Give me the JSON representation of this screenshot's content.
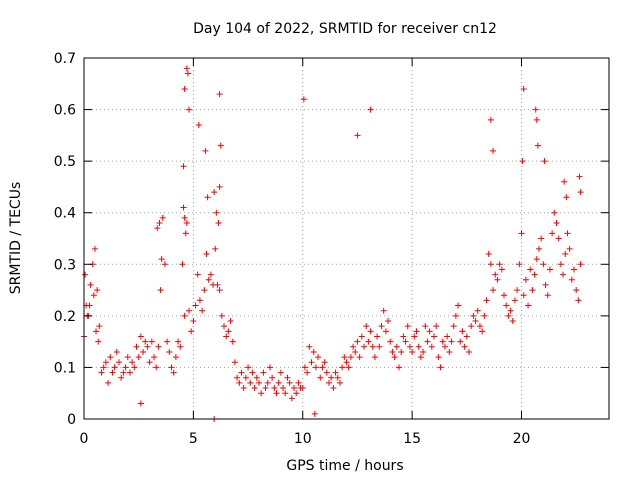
{
  "chart_data": {
    "type": "scatter",
    "title": "Day 104 of 2022, SRMTID for receiver cn12",
    "xlabel": "GPS time / hours",
    "ylabel": "SRMTID / TECUs",
    "xlim": [
      0,
      24
    ],
    "ylim": [
      0,
      0.7
    ],
    "xticks": [
      "0",
      "5",
      "10",
      "15",
      "20"
    ],
    "yticks": [
      "0",
      "0.1",
      "0.2",
      "0.3",
      "0.4",
      "0.5",
      "0.6",
      "0.7"
    ],
    "xtick_values": [
      0,
      5,
      10,
      15,
      20
    ],
    "ytick_values": [
      0,
      0.1,
      0.2,
      0.3,
      0.4,
      0.5,
      0.6,
      0.7
    ],
    "grid": true,
    "marker": "+",
    "color": "#ff0000",
    "series": [
      {
        "name": "SRMTID",
        "x": [
          0.0,
          0.1,
          0.2,
          0.3,
          0.4,
          0.5,
          0.6,
          0.7,
          0.8,
          0.9,
          1.0,
          1.1,
          1.2,
          1.3,
          1.4,
          1.5,
          1.6,
          1.7,
          1.8,
          1.9,
          2.0,
          2.1,
          2.2,
          2.3,
          2.4,
          2.5,
          2.6,
          2.7,
          2.8,
          2.9,
          3.0,
          3.1,
          3.2,
          3.3,
          3.4,
          3.5,
          3.6,
          3.7,
          3.8,
          3.9,
          4.0,
          4.1,
          4.2,
          4.3,
          4.4,
          4.5,
          4.6,
          4.7,
          4.8,
          4.9,
          5.0,
          5.1,
          5.2,
          5.3,
          5.4,
          5.5,
          5.6,
          5.7,
          5.8,
          5.9,
          6.0,
          6.1,
          6.2,
          6.3,
          6.4,
          6.5,
          6.6,
          6.7,
          6.8,
          6.9,
          7.0,
          7.1,
          7.2,
          7.3,
          7.4,
          7.5,
          7.6,
          7.7,
          7.8,
          7.9,
          8.0,
          8.1,
          8.2,
          8.3,
          8.4,
          8.5,
          8.6,
          8.7,
          8.8,
          8.9,
          9.0,
          9.1,
          9.2,
          9.3,
          9.4,
          9.5,
          9.6,
          9.7,
          9.8,
          9.9,
          10.0,
          10.1,
          10.2,
          10.3,
          10.4,
          10.5,
          10.6,
          10.7,
          10.8,
          10.9,
          11.0,
          11.1,
          11.2,
          11.3,
          11.4,
          11.5,
          11.6,
          11.7,
          11.8,
          11.9,
          12.0,
          12.1,
          12.2,
          12.3,
          12.4,
          12.5,
          12.6,
          12.7,
          12.8,
          12.9,
          13.0,
          13.1,
          13.2,
          13.3,
          13.4,
          13.5,
          13.6,
          13.7,
          13.8,
          13.9,
          14.0,
          14.1,
          14.2,
          14.3,
          14.4,
          14.5,
          14.6,
          14.7,
          14.8,
          14.9,
          15.0,
          15.1,
          15.2,
          15.3,
          15.4,
          15.5,
          15.6,
          15.7,
          15.8,
          15.9,
          16.0,
          16.1,
          16.2,
          16.3,
          16.4,
          16.5,
          16.6,
          16.7,
          16.8,
          16.9,
          17.0,
          17.1,
          17.2,
          17.3,
          17.4,
          17.5,
          17.6,
          17.7,
          17.8,
          17.9,
          18.0,
          18.1,
          18.2,
          18.3,
          18.4,
          18.5,
          18.6,
          18.7,
          18.8,
          18.9,
          19.0,
          19.1,
          19.2,
          19.3,
          19.4,
          19.5,
          19.6,
          19.7,
          19.8,
          19.9,
          20.0,
          20.1,
          20.2,
          20.3,
          20.4,
          20.5,
          20.6,
          20.7,
          20.8,
          20.9,
          21.0,
          21.1,
          21.2,
          21.3,
          21.4,
          21.5,
          21.6,
          21.7,
          21.8,
          21.9,
          22.0,
          22.1,
          22.2,
          22.3,
          22.4,
          22.5,
          22.6,
          22.7,
          0.05,
          0.15,
          0.25,
          0.45,
          0.55,
          0.65,
          3.35,
          3.45,
          3.55,
          4.55,
          4.6,
          4.65,
          4.7,
          4.75,
          4.8,
          5.25,
          5.55,
          5.65,
          5.95,
          6.05,
          6.15,
          6.2,
          6.25,
          4.55,
          4.6,
          6.2,
          10.05,
          12.5,
          13.1,
          18.6,
          18.7,
          20.05,
          20.1,
          20.65,
          20.7,
          20.75,
          21.05,
          21.95,
          22.05,
          22.65,
          22.7,
          2.6,
          5.95,
          10.55
        ],
        "y": [
          0.16,
          0.22,
          0.2,
          0.26,
          0.3,
          0.33,
          0.25,
          0.18,
          0.09,
          0.1,
          0.11,
          0.07,
          0.12,
          0.09,
          0.1,
          0.13,
          0.11,
          0.08,
          0.09,
          0.1,
          0.12,
          0.09,
          0.11,
          0.1,
          0.14,
          0.12,
          0.16,
          0.13,
          0.15,
          0.14,
          0.11,
          0.15,
          0.12,
          0.1,
          0.14,
          0.25,
          0.39,
          0.3,
          0.15,
          0.13,
          0.1,
          0.09,
          0.12,
          0.15,
          0.14,
          0.3,
          0.2,
          0.38,
          0.21,
          0.17,
          0.19,
          0.22,
          0.28,
          0.23,
          0.21,
          0.25,
          0.32,
          0.27,
          0.28,
          0.26,
          0.33,
          0.26,
          0.25,
          0.2,
          0.18,
          0.16,
          0.17,
          0.19,
          0.15,
          0.11,
          0.08,
          0.07,
          0.09,
          0.06,
          0.08,
          0.1,
          0.07,
          0.09,
          0.06,
          0.08,
          0.07,
          0.05,
          0.09,
          0.06,
          0.07,
          0.1,
          0.08,
          0.06,
          0.05,
          0.07,
          0.09,
          0.06,
          0.05,
          0.08,
          0.07,
          0.04,
          0.06,
          0.05,
          0.07,
          0.06,
          0.06,
          0.1,
          0.09,
          0.14,
          0.11,
          0.13,
          0.1,
          0.12,
          0.08,
          0.1,
          0.11,
          0.09,
          0.07,
          0.08,
          0.06,
          0.09,
          0.08,
          0.07,
          0.1,
          0.12,
          0.11,
          0.1,
          0.12,
          0.14,
          0.13,
          0.15,
          0.12,
          0.16,
          0.14,
          0.18,
          0.15,
          0.17,
          0.14,
          0.12,
          0.16,
          0.14,
          0.18,
          0.21,
          0.17,
          0.19,
          0.15,
          0.13,
          0.12,
          0.14,
          0.1,
          0.13,
          0.16,
          0.15,
          0.18,
          0.14,
          0.13,
          0.16,
          0.17,
          0.14,
          0.12,
          0.13,
          0.18,
          0.15,
          0.17,
          0.14,
          0.16,
          0.18,
          0.12,
          0.1,
          0.15,
          0.14,
          0.16,
          0.13,
          0.15,
          0.18,
          0.2,
          0.22,
          0.15,
          0.17,
          0.14,
          0.16,
          0.13,
          0.18,
          0.2,
          0.19,
          0.21,
          0.18,
          0.17,
          0.2,
          0.23,
          0.32,
          0.3,
          0.25,
          0.28,
          0.27,
          0.3,
          0.29,
          0.24,
          0.22,
          0.2,
          0.21,
          0.19,
          0.23,
          0.25,
          0.3,
          0.36,
          0.24,
          0.27,
          0.22,
          0.29,
          0.25,
          0.28,
          0.31,
          0.33,
          0.35,
          0.3,
          0.26,
          0.24,
          0.29,
          0.36,
          0.4,
          0.38,
          0.35,
          0.3,
          0.28,
          0.32,
          0.36,
          0.33,
          0.27,
          0.29,
          0.25,
          0.23,
          0.3,
          0.28,
          0.2,
          0.22,
          0.24,
          0.17,
          0.15,
          0.37,
          0.38,
          0.31,
          0.41,
          0.39,
          0.36,
          0.68,
          0.67,
          0.6,
          0.57,
          0.52,
          0.43,
          0.44,
          0.4,
          0.38,
          0.45,
          0.53,
          0.49,
          0.64,
          0.63,
          0.62,
          0.55,
          0.6,
          0.58,
          0.52,
          0.5,
          0.64,
          0.6,
          0.58,
          0.53,
          0.5,
          0.46,
          0.43,
          0.47,
          0.44,
          0.03,
          0.0,
          0.01
        ],
        "_note": "representative sample read from the plot"
      }
    ]
  }
}
